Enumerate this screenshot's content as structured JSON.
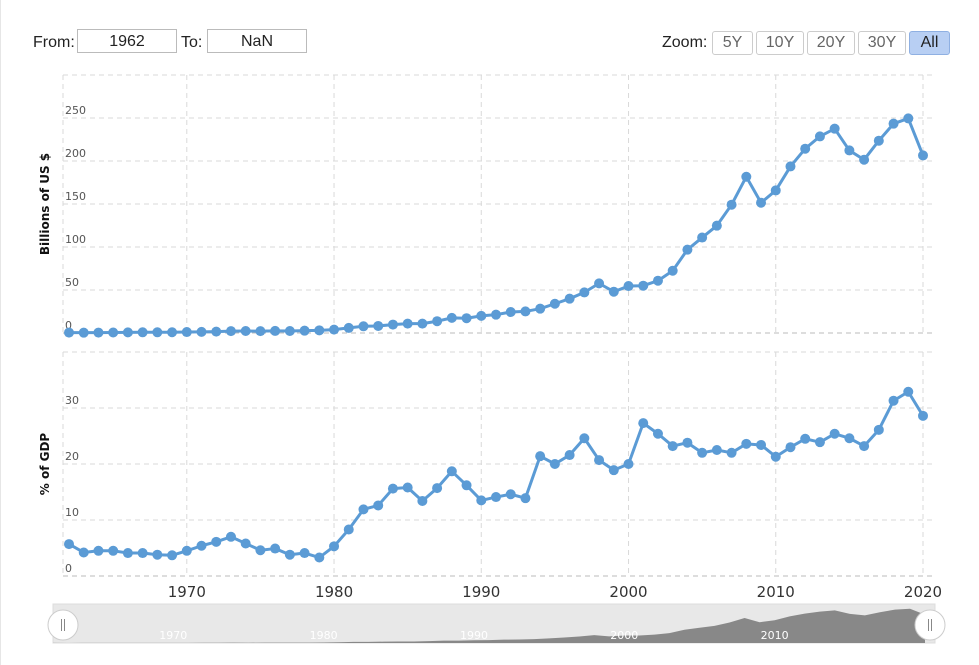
{
  "controls": {
    "from_label": "From:",
    "from_value": "1962",
    "to_label": "To:",
    "to_value": "NaN",
    "zoom_label": "Zoom:",
    "zoom_buttons": [
      {
        "label": "5Y"
      },
      {
        "label": "10Y"
      },
      {
        "label": "20Y"
      },
      {
        "label": "30Y"
      },
      {
        "label": "All",
        "active": true
      }
    ]
  },
  "colors": {
    "series": "#5b9bd5",
    "grid": "#d9d9d9",
    "navigator_fill": "#888888",
    "navigator_bg": "#e8e8e8"
  },
  "chart_data": [
    {
      "type": "line",
      "ylabel": "Billions of US $",
      "ylim": [
        0,
        300
      ],
      "yticks": [
        0,
        50,
        100,
        150,
        200,
        250
      ],
      "x": [
        1962,
        1963,
        1964,
        1965,
        1966,
        1967,
        1968,
        1969,
        1970,
        1971,
        1972,
        1973,
        1974,
        1975,
        1976,
        1977,
        1978,
        1979,
        1980,
        1981,
        1982,
        1983,
        1984,
        1985,
        1986,
        1987,
        1988,
        1989,
        1990,
        1991,
        1992,
        1993,
        1994,
        1995,
        1996,
        1997,
        1998,
        1999,
        2000,
        2001,
        2002,
        2003,
        2004,
        2005,
        2006,
        2007,
        2008,
        2009,
        2010,
        2011,
        2012,
        2013,
        2014,
        2015,
        2016,
        2017,
        2018,
        2019,
        2020
      ],
      "values": [
        0.5,
        0.4,
        0.5,
        0.6,
        0.7,
        0.8,
        0.8,
        0.9,
        1.1,
        1.3,
        1.6,
        2.2,
        2.3,
        2.2,
        2.4,
        2.3,
        2.7,
        3.1,
        3.9,
        5.9,
        7.8,
        8.2,
        9.8,
        10.9,
        10.9,
        13.7,
        17.6,
        17.2,
        19.9,
        21.3,
        24.4,
        25.1,
        28.3,
        34.0,
        39.9,
        47.2,
        57.7,
        48.0,
        54.6,
        55.0,
        60.8,
        72.4,
        96.9,
        111.0,
        124.8,
        149.2,
        181.7,
        151.5,
        165.8,
        193.7,
        214.3,
        228.6,
        237.6,
        212.3,
        201.5,
        223.6,
        243.4,
        249.5,
        206.5
      ]
    },
    {
      "type": "line",
      "ylabel": "% of GDP",
      "ylim": [
        0,
        40
      ],
      "yticks": [
        0,
        10,
        20,
        30
      ],
      "xlim": [
        1962,
        2020
      ],
      "xticks": [
        1970,
        1980,
        1990,
        2000,
        2010,
        2020
      ],
      "x": [
        1962,
        1963,
        1964,
        1965,
        1966,
        1967,
        1968,
        1969,
        1970,
        1971,
        1972,
        1973,
        1974,
        1975,
        1976,
        1977,
        1978,
        1979,
        1980,
        1981,
        1982,
        1983,
        1984,
        1985,
        1986,
        1987,
        1988,
        1989,
        1990,
        1991,
        1992,
        1993,
        1994,
        1995,
        1996,
        1997,
        1998,
        1999,
        2000,
        2001,
        2002,
        2003,
        2004,
        2005,
        2006,
        2007,
        2008,
        2009,
        2010,
        2011,
        2012,
        2013,
        2014,
        2015,
        2016,
        2017,
        2018,
        2019,
        2020
      ],
      "values": [
        5.7,
        4.2,
        4.5,
        4.5,
        4.1,
        4.1,
        3.8,
        3.7,
        4.5,
        5.4,
        6.1,
        7.0,
        5.8,
        4.6,
        4.9,
        3.8,
        4.1,
        3.3,
        5.3,
        8.3,
        11.9,
        12.6,
        15.6,
        15.8,
        13.4,
        15.7,
        18.7,
        16.2,
        13.5,
        14.1,
        14.6,
        13.9,
        21.4,
        20.0,
        21.6,
        24.6,
        20.7,
        18.9,
        20.0,
        27.3,
        25.4,
        23.2,
        23.8,
        22.0,
        22.5,
        22.0,
        23.6,
        23.4,
        21.3,
        23.0,
        24.5,
        23.9,
        25.4,
        24.6,
        23.2,
        26.1,
        31.3,
        32.9,
        28.6
      ]
    }
  ],
  "navigator": {
    "xticks": [
      1970,
      1980,
      1990,
      2000,
      2010
    ]
  }
}
